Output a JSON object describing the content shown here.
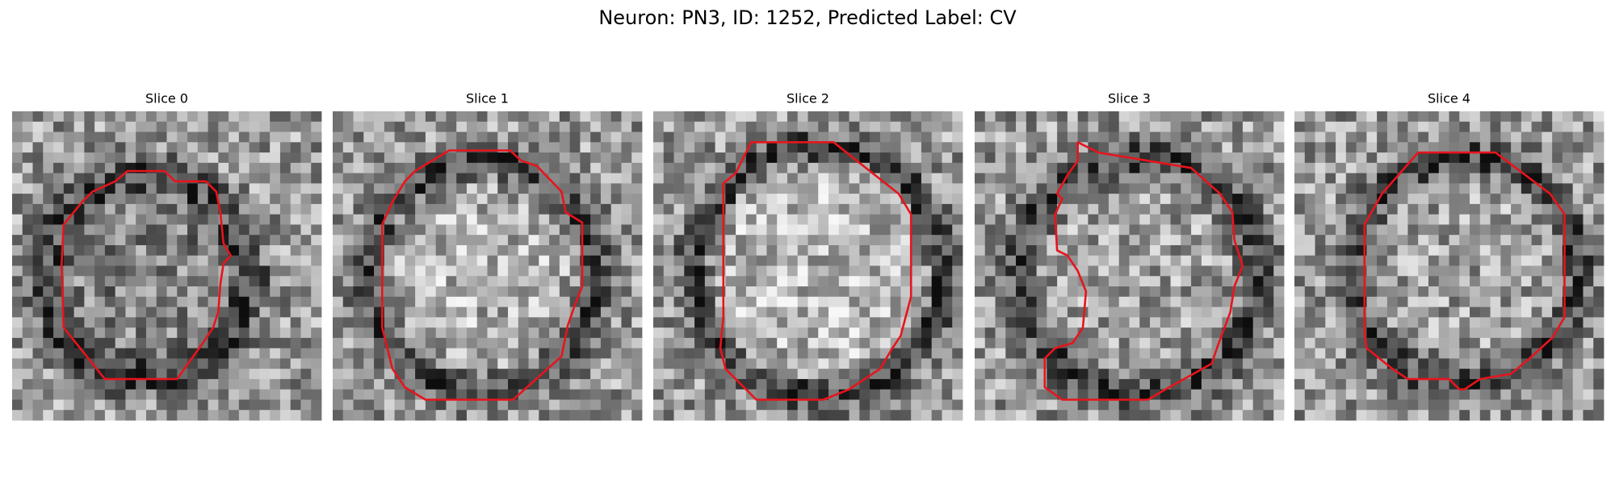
{
  "title": "Neuron: PN3, ID: 1252, Predicted Label: CV",
  "panels": [
    {
      "title": "Slice 0"
    },
    {
      "title": "Slice 1"
    },
    {
      "title": "Slice 2"
    },
    {
      "title": "Slice 3"
    },
    {
      "title": "Slice 4"
    }
  ]
}
